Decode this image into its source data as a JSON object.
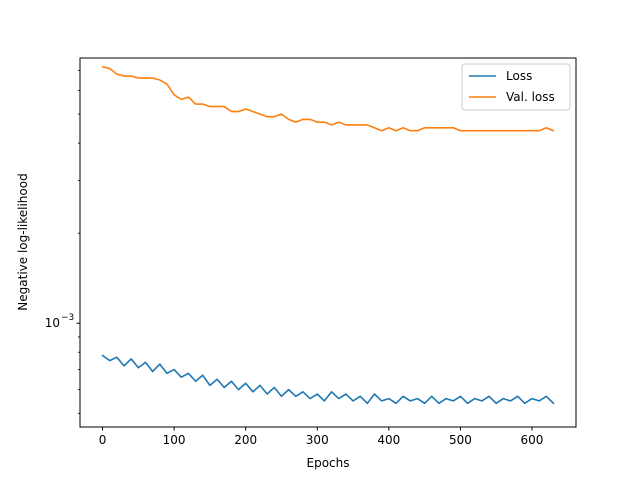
{
  "chart_data": {
    "type": "line",
    "xlabel": "Epochs",
    "ylabel": "Negative log-likelihood",
    "yscale": "log",
    "xlim": [
      -31.5,
      661.5
    ],
    "ylim": [
      0.00045,
      0.0077
    ],
    "x_ticks": [
      0,
      100,
      200,
      300,
      400,
      500,
      600
    ],
    "x_tick_labels": [
      "0",
      "100",
      "200",
      "300",
      "400",
      "500",
      "600"
    ],
    "y_ticks": [
      0.001
    ],
    "y_tick_labels": [
      "10",
      "−3"
    ],
    "grid": false,
    "legend_position": "top-right",
    "series": [
      {
        "name": "Loss",
        "color": "#1f77b4",
        "x": [
          0,
          10,
          20,
          30,
          40,
          50,
          60,
          70,
          80,
          90,
          100,
          110,
          120,
          130,
          140,
          150,
          160,
          170,
          180,
          190,
          200,
          210,
          220,
          230,
          240,
          250,
          260,
          270,
          280,
          290,
          300,
          310,
          320,
          330,
          340,
          350,
          360,
          370,
          380,
          390,
          400,
          410,
          420,
          430,
          440,
          450,
          460,
          470,
          480,
          490,
          500,
          510,
          520,
          530,
          540,
          550,
          560,
          570,
          580,
          590,
          600,
          610,
          620,
          630
        ],
        "y": [
          0.00078,
          0.00075,
          0.00077,
          0.00072,
          0.00076,
          0.00071,
          0.00074,
          0.00069,
          0.00073,
          0.00068,
          0.0007,
          0.00066,
          0.00068,
          0.00064,
          0.00067,
          0.00062,
          0.00065,
          0.00061,
          0.00064,
          0.0006,
          0.00063,
          0.00059,
          0.00062,
          0.00058,
          0.00061,
          0.00057,
          0.0006,
          0.00057,
          0.00059,
          0.00056,
          0.00058,
          0.00055,
          0.00059,
          0.00056,
          0.00058,
          0.00055,
          0.00057,
          0.00054,
          0.00058,
          0.00055,
          0.00056,
          0.00054,
          0.00057,
          0.00055,
          0.00056,
          0.00054,
          0.00057,
          0.00054,
          0.00056,
          0.00055,
          0.00057,
          0.00054,
          0.00056,
          0.00055,
          0.00057,
          0.00054,
          0.00056,
          0.00055,
          0.00057,
          0.00054,
          0.00056,
          0.00055,
          0.00057,
          0.00054
        ]
      },
      {
        "name": "Val. loss",
        "color": "#ff7f0e",
        "x": [
          0,
          10,
          20,
          30,
          40,
          50,
          60,
          70,
          80,
          90,
          100,
          110,
          120,
          130,
          140,
          150,
          160,
          170,
          180,
          190,
          200,
          210,
          220,
          230,
          240,
          250,
          260,
          270,
          280,
          290,
          300,
          310,
          320,
          330,
          340,
          350,
          360,
          370,
          380,
          390,
          400,
          410,
          420,
          430,
          440,
          450,
          460,
          470,
          480,
          490,
          500,
          510,
          520,
          530,
          540,
          550,
          560,
          570,
          580,
          590,
          600,
          610,
          620,
          630
        ],
        "y": [
          0.0072,
          0.0071,
          0.0068,
          0.0067,
          0.0067,
          0.0066,
          0.0066,
          0.0066,
          0.0065,
          0.0063,
          0.0058,
          0.0056,
          0.0057,
          0.0054,
          0.0054,
          0.0053,
          0.0053,
          0.0053,
          0.0051,
          0.0051,
          0.0052,
          0.0051,
          0.005,
          0.0049,
          0.0049,
          0.005,
          0.0048,
          0.0047,
          0.0048,
          0.0048,
          0.0047,
          0.0047,
          0.0046,
          0.0047,
          0.0046,
          0.0046,
          0.0046,
          0.0046,
          0.0045,
          0.0044,
          0.0045,
          0.0044,
          0.0045,
          0.0044,
          0.0044,
          0.0045,
          0.0045,
          0.0045,
          0.0045,
          0.0045,
          0.0044,
          0.0044,
          0.0044,
          0.0044,
          0.0044,
          0.0044,
          0.0044,
          0.0044,
          0.0044,
          0.0044,
          0.0044,
          0.0044,
          0.0045,
          0.0044
        ]
      }
    ]
  }
}
